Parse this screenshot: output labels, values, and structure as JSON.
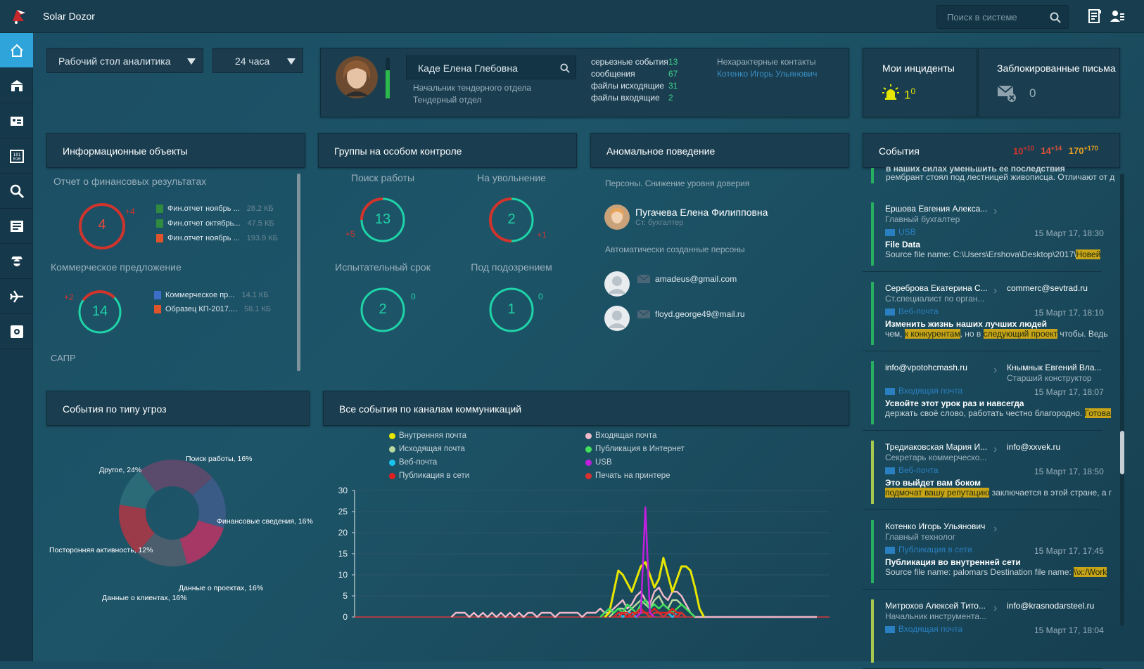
{
  "app": {
    "title": "Solar Dozor"
  },
  "search": {
    "placeholder": "Поиск в системе"
  },
  "filters": {
    "dashboard": "Рабочий стол аналитика",
    "period": "24 часа"
  },
  "profile": {
    "name": "Каде Елена Глебовна",
    "position": "Начальник тендерного отдела",
    "department": "Тендерный отдел",
    "stats": [
      {
        "label": "серьезные события",
        "value": "13"
      },
      {
        "label": "сообщения",
        "value": "67"
      },
      {
        "label": "файлы исходящие",
        "value": "31"
      },
      {
        "label": "файлы входящие",
        "value": "2"
      }
    ],
    "contacts_label": "Нехарактерные контакты",
    "contact": "Котенко Игорь Ульянович"
  },
  "incidents": {
    "title": "Мои инциденты",
    "count": "1",
    "delta": "0"
  },
  "blocked": {
    "title": "Заблокированные письма",
    "count": "0"
  },
  "info_objects": {
    "title": "Информационные объекты",
    "group1": {
      "title": "Отчет о финансовых результатах",
      "count": "4",
      "delta": "+4",
      "files": [
        {
          "name": "Фин.отчет ноябрь ...",
          "size": "28.2 КБ",
          "type": "xls"
        },
        {
          "name": "Фин.отчет октябрь...",
          "size": "47.5 КБ",
          "type": "xls"
        },
        {
          "name": "Фин.отчет ноябрь ...",
          "size": "193.9 КБ",
          "type": "pdf"
        }
      ]
    },
    "group2": {
      "title": "Коммерческое предложение",
      "count": "14",
      "delta": "+2",
      "files": [
        {
          "name": "Коммерческое пр...",
          "size": "14.1 КБ",
          "type": "doc"
        },
        {
          "name": "Образец КП-2017....",
          "size": "58.1 КБ",
          "type": "pdf"
        }
      ]
    },
    "group3": {
      "title": "САПР"
    }
  },
  "groups": {
    "title": "Группы на особом контроле",
    "items": [
      {
        "label": "Поиск работы",
        "count": "13",
        "delta": "+5",
        "fill": 0.25
      },
      {
        "label": "На увольнение",
        "count": "2",
        "delta": "+1",
        "fill": 0.5
      },
      {
        "label": "Испытательный срок",
        "count": "2",
        "delta": "0",
        "fill": 0
      },
      {
        "label": "Под подозрением",
        "count": "1",
        "delta": "0",
        "fill": 0
      }
    ]
  },
  "anomaly": {
    "title": "Аномальное поведение",
    "section1": "Персоны. Снижение уровня доверия",
    "person": {
      "name": "Пугачева Елена Филипповна",
      "position": "Ст. бухгалтер"
    },
    "section2": "Автоматически созданные персоны",
    "auto": [
      "amadeus@gmail.com",
      "floyd.george49@mail.ru"
    ]
  },
  "events_panel": {
    "title": "События",
    "counters": [
      {
        "value": "10",
        "delta": "+10",
        "color": "#d0342c"
      },
      {
        "value": "14",
        "delta": "+14",
        "color": "#e0533a"
      },
      {
        "value": "170",
        "delta": "+170",
        "color": "#e8a020"
      }
    ],
    "top_text1": "в наших силах уменьшить ее последствия",
    "top_text2": "рембрант стоял под лестницей живописца. Отличают от д",
    "items": [
      {
        "from": "Ершова Евгения Алекса...",
        "from_role": "Главный бухгалтер",
        "to": "",
        "to_role": "",
        "channel": "USB",
        "date": "15 Март 17, 18:30",
        "subject": "File Data",
        "body_pre": "Source file name: C:\\Users\\Ershova\\Desktop\\2017\\",
        "body_hl": "Новей",
        "body_post": "",
        "bar": "#27ae60"
      },
      {
        "from": "Сереброва Екатерина С...",
        "from_role": "Ст.специалист по орган...",
        "to": "commerc@sevtrad.ru",
        "to_role": "",
        "channel": "Веб-почта",
        "date": "15 Март 17, 18:10",
        "subject": "Изменить жизнь наших лучших людей",
        "body_pre": "чем, ",
        "body_hl": "к конкурентам",
        "body_mid": ", но в ",
        "body_hl2": "следующий проект",
        "body_post": " чтобы. Ведь",
        "bar": "#27ae60"
      },
      {
        "from": "info@vpotohcmash.ru",
        "from_role": "",
        "to": "Кнымнык Евгений Вла...",
        "to_role": "Старший конструктор",
        "channel": "Входящая почта",
        "date": "15 Март 17, 18:07",
        "subject": "Усвойте этот урок раз и навсегда",
        "body_pre": "держать своё слово, работать честно благородно. ",
        "body_hl": "Готова",
        "body_post": "",
        "bar": "#27ae60"
      },
      {
        "from": "Тредиаковская Мария И...",
        "from_role": "Секретарь коммерческо...",
        "to": "info@xxvek.ru",
        "to_role": "",
        "channel": "Веб-почта",
        "date": "15 Март 17, 18:50",
        "subject": "Это выйдет вам боком",
        "body_pre": "",
        "body_hl": "подмочат вашу репутацию",
        "body_post": " заключается в этой стране, а г",
        "bar": "#a8c850"
      },
      {
        "from": "Котенко Игорь Ульянович",
        "from_role": "Главный технолог",
        "to": "",
        "to_role": "",
        "channel": "Публикация в сети",
        "date": "15 Март 17, 17:45",
        "subject": "Публикация во внутренней сети",
        "body_pre": "Source file name: palomars Destination file name: ",
        "body_hl": "\\\\x:/Work",
        "body_post": "",
        "bar": "#27ae60"
      },
      {
        "from": "Митрохов Алексей Тито...",
        "from_role": "Начальник инструмента...",
        "to": "info@krasnodarsteel.ru",
        "to_role": "",
        "channel": "Входящая почта",
        "date": "15 Март 17, 18:04",
        "subject": "",
        "body_pre": "",
        "body_hl": "",
        "body_post": "",
        "bar": "#a8c850"
      }
    ]
  },
  "threats": {
    "title": "События по типу угроз",
    "labels": [
      "Поиск работы, 16%",
      "Финансовые сведения, 16%",
      "Данные о проектах, 16%",
      "Данные о клиентах, 16%",
      "Посторонняя активность, 12%",
      "Другое, 24%"
    ],
    "values": [
      16,
      16,
      16,
      16,
      12,
      24
    ],
    "colors": [
      "#3a5b86",
      "#a53864",
      "#4a5e6d",
      "#9b3a48",
      "#2b6b78",
      "#5a4a6c"
    ]
  },
  "channels": {
    "title": "Все события по каналам коммуникаций"
  },
  "chart_data": {
    "type": "line",
    "title": "Все события по каналам коммуникаций",
    "ylim": [
      0,
      30
    ],
    "yticks": [
      "30",
      "25",
      "20",
      "15",
      "10",
      "5",
      "0"
    ],
    "x": [
      0,
      1,
      2,
      3,
      4,
      5,
      6,
      7,
      8,
      9,
      10,
      11,
      12,
      13,
      14,
      15,
      16,
      17,
      18,
      19,
      20,
      21,
      22,
      23,
      24,
      25,
      26,
      27,
      28,
      29,
      30,
      31,
      32,
      33,
      34,
      35,
      36,
      37,
      38,
      39,
      40,
      41,
      42,
      43,
      44,
      45,
      46,
      47,
      48,
      49,
      50,
      51,
      52,
      53,
      54,
      55,
      56,
      57,
      58,
      59,
      60,
      61,
      62,
      63,
      64,
      65,
      66,
      67,
      68,
      69,
      70,
      71,
      72,
      73,
      74,
      75,
      76,
      77,
      78,
      79,
      80,
      81,
      82,
      83,
      84,
      85,
      86,
      87,
      88,
      89,
      90,
      91,
      92,
      93,
      94,
      95,
      96,
      97,
      98,
      99
    ],
    "series": [
      {
        "name": "Внутренняя почта",
        "color": "#e6e600",
        "values": [
          0,
          0,
          0,
          0,
          0,
          0,
          0,
          0,
          0,
          0,
          0,
          0,
          0,
          0,
          0,
          0,
          0,
          0,
          0,
          0,
          0,
          0,
          0,
          0,
          0,
          0,
          0,
          0,
          0,
          0,
          0,
          0,
          0,
          0,
          0,
          0,
          0,
          0,
          0,
          0,
          0,
          0,
          0,
          0,
          0,
          0,
          0,
          0,
          0,
          0,
          0,
          0,
          0,
          1,
          6,
          11,
          10,
          8,
          6,
          9,
          12,
          13,
          10,
          7,
          9,
          14,
          10,
          6,
          9,
          12,
          12,
          11,
          7,
          2,
          0,
          0,
          0,
          0,
          0,
          0,
          0,
          0,
          0,
          0,
          0,
          0,
          0,
          0,
          0,
          0,
          0,
          0,
          0,
          0,
          0,
          0,
          0,
          0,
          0,
          0
        ]
      },
      {
        "name": "Входящая почта",
        "color": "#f0b8c8",
        "values": [
          0,
          0,
          0,
          0,
          0,
          0,
          0,
          0,
          0,
          0,
          0,
          0,
          0,
          0,
          0,
          0,
          0,
          0,
          0,
          1,
          1,
          1,
          0,
          1,
          0,
          1,
          0,
          1,
          0,
          1,
          0,
          1,
          0,
          1,
          0,
          1,
          1,
          0,
          1,
          1,
          1,
          0,
          1,
          1,
          1,
          1,
          1,
          0,
          1,
          1,
          1,
          2,
          1,
          1,
          2,
          3,
          4,
          2,
          3,
          5,
          6,
          4,
          3,
          6,
          7,
          5,
          4,
          6,
          6,
          5,
          3,
          1,
          0,
          0,
          0,
          0,
          0,
          0,
          0,
          0,
          0,
          0,
          0,
          0,
          0,
          0,
          0,
          0,
          0,
          0,
          0,
          0,
          0,
          0,
          0,
          0,
          0,
          0,
          0,
          0
        ]
      },
      {
        "name": "Исходящая почта",
        "color": "#b8d8a0",
        "values": [
          0,
          0,
          0,
          0,
          0,
          0,
          0,
          0,
          0,
          0,
          0,
          0,
          0,
          0,
          0,
          0,
          0,
          0,
          0,
          0,
          0,
          0,
          0,
          0,
          0,
          0,
          0,
          0,
          0,
          0,
          0,
          0,
          0,
          0,
          0,
          0,
          0,
          0,
          0,
          0,
          0,
          0,
          0,
          0,
          0,
          0,
          0,
          0,
          0,
          0,
          0,
          0,
          0,
          0,
          1,
          2,
          2,
          1,
          2,
          3,
          4,
          3,
          2,
          4,
          5,
          3,
          2,
          4,
          4,
          3,
          2,
          1,
          0,
          0,
          0,
          0,
          0,
          0,
          0,
          0,
          0,
          0,
          0,
          0,
          0,
          0,
          0,
          0,
          0,
          0,
          0,
          0,
          0,
          0,
          0,
          0,
          0,
          0,
          0,
          0
        ]
      },
      {
        "name": "Публикация в Интернет",
        "color": "#3fe05a",
        "values": [
          0,
          0,
          0,
          0,
          0,
          0,
          0,
          0,
          0,
          0,
          0,
          0,
          0,
          0,
          0,
          0,
          0,
          0,
          0,
          0,
          0,
          0,
          0,
          0,
          0,
          0,
          0,
          0,
          0,
          0,
          0,
          0,
          0,
          0,
          0,
          0,
          0,
          0,
          0,
          0,
          0,
          0,
          0,
          0,
          0,
          0,
          0,
          0,
          0,
          0,
          0,
          0,
          1,
          2,
          1,
          2,
          1,
          3,
          2,
          1,
          3,
          4,
          2,
          3,
          2,
          3,
          2,
          1,
          2,
          3,
          2,
          1,
          0,
          0,
          0,
          0,
          0,
          0,
          0,
          0,
          0,
          0,
          0,
          0,
          0,
          0,
          0,
          0,
          0,
          0,
          0,
          0,
          0,
          0,
          0,
          0,
          0,
          0,
          0,
          0
        ]
      },
      {
        "name": "Веб-почта",
        "color": "#1ac4f0",
        "values": [
          0,
          0,
          0,
          0,
          0,
          0,
          0,
          0,
          0,
          0,
          0,
          0,
          0,
          0,
          0,
          0,
          0,
          0,
          0,
          0,
          0,
          0,
          0,
          0,
          0,
          0,
          0,
          0,
          0,
          0,
          0,
          0,
          0,
          0,
          0,
          0,
          0,
          0,
          0,
          0,
          0,
          0,
          0,
          0,
          0,
          0,
          0,
          0,
          0,
          0,
          0,
          0,
          0,
          0,
          0,
          1,
          0,
          1,
          1,
          0,
          1,
          1,
          0,
          1,
          1,
          0,
          1,
          0,
          1,
          1,
          0,
          0,
          0,
          0,
          0,
          0,
          0,
          0,
          0,
          0,
          0,
          0,
          0,
          0,
          0,
          0,
          0,
          0,
          0,
          0,
          0,
          0,
          0,
          0,
          0,
          0,
          0,
          0,
          0,
          0
        ]
      },
      {
        "name": "USB",
        "color": "#c21ee0",
        "values": [
          0,
          0,
          0,
          0,
          0,
          0,
          0,
          0,
          0,
          0,
          0,
          0,
          0,
          0,
          0,
          0,
          0,
          0,
          0,
          0,
          0,
          0,
          0,
          0,
          0,
          0,
          0,
          0,
          0,
          0,
          0,
          0,
          0,
          0,
          0,
          0,
          0,
          0,
          0,
          0,
          0,
          0,
          0,
          0,
          0,
          0,
          0,
          0,
          0,
          0,
          0,
          0,
          0,
          0,
          0,
          0,
          0,
          0,
          0,
          0,
          1,
          26,
          1,
          0,
          0,
          0,
          0,
          0,
          0,
          0,
          0,
          0,
          0,
          0,
          0,
          0,
          0,
          0,
          0,
          0,
          0,
          0,
          0,
          0,
          0,
          0,
          0,
          0,
          0,
          0,
          0,
          0,
          0,
          0,
          0,
          0,
          0,
          0,
          0,
          0
        ]
      },
      {
        "name": "Публикация в сети",
        "color": "#e02020",
        "values": [
          0,
          0,
          0,
          0,
          0,
          0,
          0,
          0,
          0,
          0,
          0,
          0,
          0,
          0,
          0,
          0,
          0,
          0,
          0,
          0,
          0,
          0,
          0,
          0,
          0,
          0,
          0,
          0,
          0,
          0,
          0,
          0,
          0,
          0,
          0,
          0,
          0,
          0,
          0,
          0,
          0,
          0,
          0,
          0,
          0,
          0,
          0,
          0,
          0,
          0,
          0,
          0,
          0,
          0,
          0,
          1,
          1,
          0,
          1,
          1,
          2,
          1,
          1,
          2,
          1,
          1,
          1,
          2,
          1,
          1,
          0,
          0,
          0,
          0,
          0,
          0,
          0,
          0,
          0,
          0,
          0,
          0,
          0,
          0,
          0,
          0,
          0,
          0,
          0,
          0,
          0,
          0,
          0,
          0,
          0,
          0,
          0,
          0,
          0,
          0
        ]
      },
      {
        "name": "Печать на принтере",
        "color": "#d83030",
        "values": [
          0,
          0,
          0,
          0,
          0,
          0,
          0,
          0,
          0,
          0,
          0,
          0,
          0,
          0,
          0,
          0,
          0,
          0,
          0,
          0,
          0,
          0,
          0,
          0,
          0,
          0,
          0,
          0,
          0,
          0,
          0,
          0,
          0,
          0,
          0,
          0,
          0,
          0,
          0,
          0,
          0,
          0,
          0,
          0,
          0,
          0,
          0,
          0,
          0,
          0,
          0,
          0,
          0,
          0,
          0,
          0,
          1,
          1,
          0,
          1,
          1,
          1,
          0,
          1,
          1,
          0,
          1,
          1,
          0,
          1,
          0,
          0,
          0,
          0,
          0,
          0,
          0,
          0,
          0,
          0,
          0,
          0,
          0,
          0,
          0,
          0,
          0,
          0,
          0,
          0,
          0,
          0,
          0,
          0,
          0,
          0,
          0,
          0,
          0,
          0
        ]
      }
    ]
  }
}
